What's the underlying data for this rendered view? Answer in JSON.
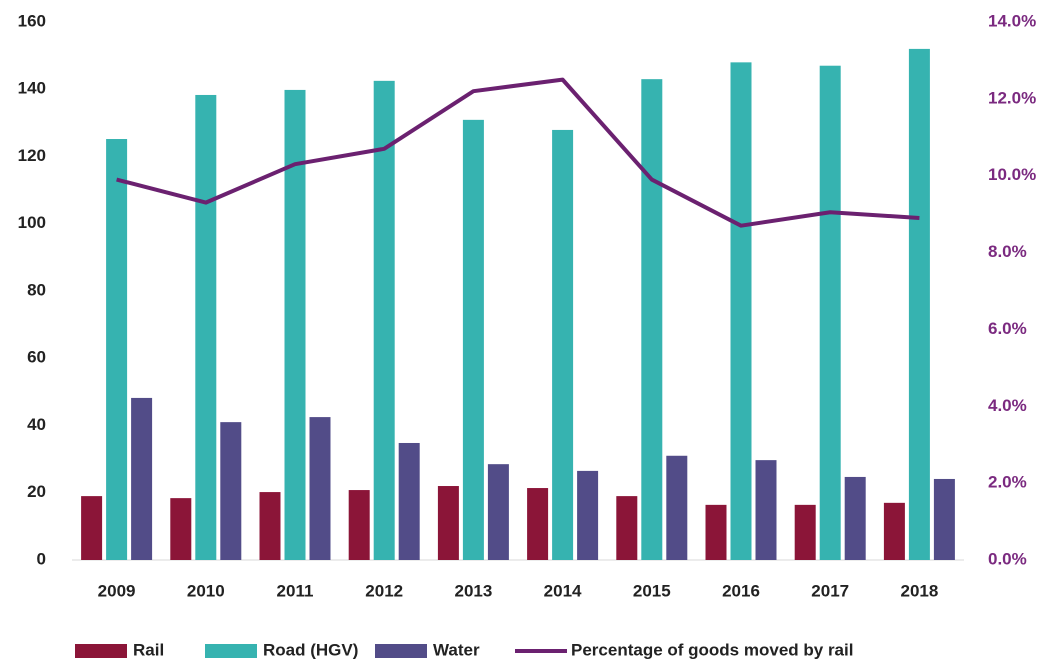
{
  "chart_data": {
    "type": "bar",
    "categories": [
      "2009",
      "2010",
      "2011",
      "2012",
      "2013",
      "2014",
      "2015",
      "2016",
      "2017",
      "2018"
    ],
    "series": [
      {
        "name": "Rail",
        "color": "#8b1538",
        "values": [
          19.0,
          18.4,
          20.2,
          20.8,
          22.0,
          21.4,
          19.0,
          16.4,
          16.4,
          17.0
        ]
      },
      {
        "name": "Road (HGV)",
        "color": "#36b3b0",
        "values": [
          125.2,
          138.3,
          139.8,
          142.5,
          130.9,
          127.9,
          143.0,
          148.0,
          147.0,
          152.0
        ]
      },
      {
        "name": "Water",
        "color": "#524c88",
        "values": [
          48.2,
          41.0,
          42.5,
          34.8,
          28.5,
          26.5,
          31.0,
          29.7,
          24.7,
          24.1
        ]
      },
      {
        "name": "Percentage of goods moved by rail",
        "color": "#6b2170",
        "type": "line",
        "axis": "y2",
        "values": [
          9.9,
          9.3,
          10.3,
          10.7,
          12.2,
          12.5,
          9.9,
          8.7,
          9.05,
          8.9
        ]
      }
    ],
    "ylim": [
      0,
      160
    ],
    "yticks": [
      0,
      20,
      40,
      60,
      80,
      100,
      120,
      140,
      160
    ],
    "y2lim": [
      0,
      14
    ],
    "y2ticks": [
      {
        "value": 0,
        "label": "0.0%"
      },
      {
        "value": 2,
        "label": "2.0%"
      },
      {
        "value": 4,
        "label": "4.0%"
      },
      {
        "value": 6,
        "label": "6.0%"
      },
      {
        "value": 8,
        "label": "8.0%"
      },
      {
        "value": 10,
        "label": "10.0%"
      },
      {
        "value": 12,
        "label": "12.0%"
      },
      {
        "value": 14,
        "label": "14.0%"
      }
    ],
    "legend": "bottom"
  }
}
